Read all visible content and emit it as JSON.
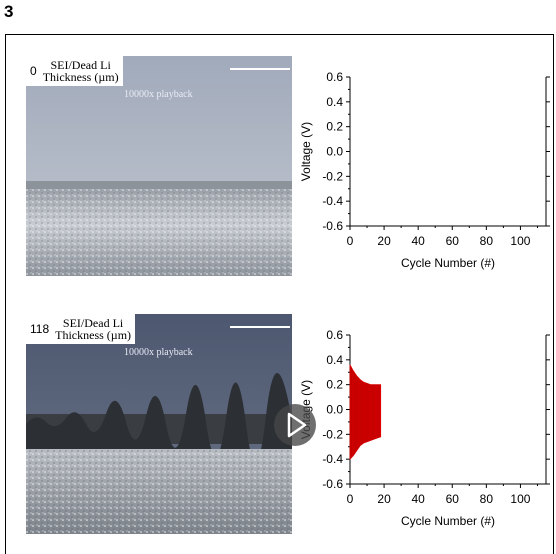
{
  "figure_label": "3",
  "panels": [
    {
      "thickness_value": "0",
      "thickness_label_line1": "SEI/Dead Li",
      "thickness_label_line2": "Thickness (µm)",
      "playback_text": "10000x playback"
    },
    {
      "thickness_value": "118",
      "thickness_label_line1": "SEI/Dead Li",
      "thickness_label_line2": "Thickness (µm)",
      "playback_text": "10000x playback"
    }
  ],
  "chart_data": [
    {
      "type": "line",
      "xlabel": "Cycle Number (#)",
      "ylabel": "Voltage (V)",
      "xlim": [
        0,
        115
      ],
      "ylim": [
        -0.6,
        0.6
      ],
      "x_ticks": [
        "0",
        "20",
        "40",
        "60",
        "80",
        "100"
      ],
      "y_ticks": [
        "0.6",
        "0.4",
        "0.2",
        "0.0",
        "-0.2",
        "-0.4",
        "-0.6"
      ],
      "series": [
        {
          "color": "#ff0000",
          "x": [],
          "upper": [],
          "lower": []
        }
      ]
    },
    {
      "type": "line",
      "xlabel": "Cycle Number (#)",
      "ylabel": "Voltage (V)",
      "xlim": [
        0,
        115
      ],
      "ylim": [
        -0.6,
        0.6
      ],
      "x_ticks": [
        "0",
        "20",
        "40",
        "60",
        "80",
        "100"
      ],
      "y_ticks": [
        "0.6",
        "0.4",
        "0.2",
        "0.0",
        "-0.2",
        "-0.4",
        "-0.6"
      ],
      "series": [
        {
          "color": "#e00000",
          "x": [
            0,
            2,
            4,
            6,
            8,
            10,
            12,
            14,
            16,
            18
          ],
          "upper": [
            0.36,
            0.31,
            0.27,
            0.24,
            0.22,
            0.21,
            0.2,
            0.2,
            0.2,
            0.2
          ],
          "lower": [
            -0.4,
            -0.37,
            -0.33,
            -0.29,
            -0.27,
            -0.26,
            -0.25,
            -0.24,
            -0.23,
            -0.22
          ]
        }
      ]
    }
  ],
  "colors": {
    "trace": "#e00000",
    "electrolyte_top": "#a4adbd",
    "electrolyte_bottom": "#56627a"
  },
  "icons": {
    "play": "play-icon"
  }
}
